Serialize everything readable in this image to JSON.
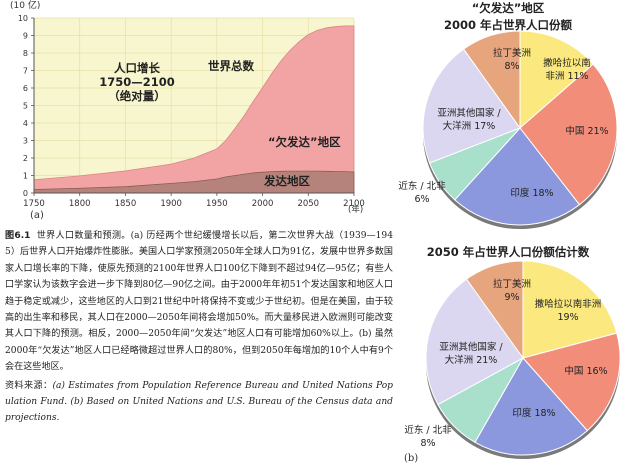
{
  "chart_data": [
    {
      "type": "area",
      "panel": "(a)",
      "ylabel": "(10 亿)",
      "xlabel": "(年)",
      "x_ticks": [
        1750,
        1800,
        1850,
        1900,
        1950,
        2000,
        2050,
        2100
      ],
      "y_ticks": [
        0,
        1,
        2,
        3,
        4,
        5,
        6,
        7,
        8,
        9,
        10
      ],
      "xlim": [
        1750,
        2100
      ],
      "ylim": [
        0,
        10
      ],
      "x": [
        1750,
        1800,
        1850,
        1900,
        1925,
        1950,
        1960,
        1970,
        1980,
        1990,
        2000,
        2010,
        2020,
        2030,
        2040,
        2050,
        2060,
        2070,
        2080,
        2090,
        2100
      ],
      "series": [
        {
          "name": "发达地区",
          "color": "#b5837b",
          "values": [
            0.2,
            0.27,
            0.36,
            0.55,
            0.65,
            0.8,
            0.92,
            1.0,
            1.08,
            1.15,
            1.19,
            1.22,
            1.24,
            1.25,
            1.25,
            1.25,
            1.25,
            1.24,
            1.23,
            1.22,
            1.2
          ]
        },
        {
          "name": "“欠发达”地区",
          "color": "#f2a4a4",
          "values": [
            0.56,
            0.71,
            0.9,
            1.1,
            1.35,
            1.72,
            2.1,
            2.7,
            3.35,
            4.1,
            4.83,
            5.6,
            6.3,
            6.9,
            7.4,
            7.8,
            8.05,
            8.2,
            8.28,
            8.33,
            8.35
          ]
        }
      ],
      "annotations": {
        "growth_title": "人口增长",
        "growth_range": "1750—2100",
        "growth_note": "（绝对量）",
        "world_total": "世界总数",
        "less_developed": "“欠发达”地区",
        "developed": "发达地区"
      }
    },
    {
      "type": "pie",
      "subtitle": "“欠发达”地区",
      "title": "2000 年占世界人口份额",
      "slices": [
        {
          "label": "撒哈拉以南非洲",
          "value": 11,
          "color": "#fbe97f"
        },
        {
          "label": "中国",
          "value": 21,
          "color": "#f28d7a"
        },
        {
          "label": "印度",
          "value": 18,
          "color": "#8c98dd"
        },
        {
          "label": "近东 / 北非",
          "value": 6,
          "color": "#a9e0cc"
        },
        {
          "label": "亚洲其他国家 / 大洋洲",
          "value": 17,
          "color": "#dcd7f0"
        },
        {
          "label": "拉丁美洲",
          "value": 8,
          "color": "#e7a57e"
        }
      ]
    },
    {
      "type": "pie",
      "title": "2050 年占世界人口份额估计数",
      "slices": [
        {
          "label": "撒哈拉以南非洲",
          "value": 19,
          "color": "#fbe97f"
        },
        {
          "label": "中国",
          "value": 16,
          "color": "#f28d7a"
        },
        {
          "label": "印度",
          "value": 18,
          "color": "#8c98dd"
        },
        {
          "label": "近东 / 北非",
          "value": 8,
          "color": "#a9e0cc"
        },
        {
          "label": "亚洲其他国家 / 大洋洲",
          "value": 21,
          "color": "#dcd7f0"
        },
        {
          "label": "拉丁美洲",
          "value": 9,
          "color": "#e7a57e"
        }
      ]
    }
  ],
  "pie_labels_2000": [
    {
      "lines": [
        "撒哈拉以南",
        "非洲  11%"
      ]
    },
    {
      "lines": [
        "中国 21%"
      ]
    },
    {
      "lines": [
        "印度 18%"
      ]
    },
    {
      "lines": [
        "近东 / 北非",
        "6%"
      ]
    },
    {
      "lines": [
        "亚洲其他国家 /",
        "大洋洲 17%"
      ]
    },
    {
      "lines": [
        "拉丁美洲",
        "8%"
      ]
    }
  ],
  "pie_labels_2050": [
    {
      "lines": [
        "撒哈拉以南非洲",
        "19%"
      ]
    },
    {
      "lines": [
        "中国 16%"
      ]
    },
    {
      "lines": [
        "印度 18%"
      ]
    },
    {
      "lines": [
        "近东 / 北非",
        "8%"
      ]
    },
    {
      "lines": [
        "亚洲其他国家 /",
        "大洋洲 21%"
      ]
    },
    {
      "lines": [
        "拉丁美洲",
        "9%"
      ]
    }
  ],
  "caption": {
    "fig_no": "图6.1",
    "body": "世界人口数量和预测。(a) 历经两个世纪缓慢增长以后，第二次世界大战（1939—1945）后世界人口开始爆炸性膨胀。美国人口学家预测2050年全球人口为91亿，发展中世界多数国家人口增长率的下降，使原先预测的2100年世界人口100亿下降到不超过94亿—95亿；有些人口学家认为该数字会进一步下降到80亿—90亿之间。由于2000年年初51个发达国家和地区人口趋于稳定或减少，这些地区的人口到21世纪中叶将保持不变或少于世纪初。但是在美国，由于较高的出生率和移民，其人口在2000—2050年间将会增加50%。而大量移民进入欧洲则可能改变其人口下降的预测。相反，2000—2050年间“欠发达”地区人口有可能增加60%以上。(b) 虽然2000年“欠发达”地区人口已经略微超过世界人口的80%，但到2050年每增加的10个人中有9个会在这些地区。",
    "source_label": "资料来源：",
    "source_body": "(a) Estimates from Population Reference Bureau and United Nations Population Fund. (b) Based on United Nations and U.S. Bureau of the Census data and projections."
  },
  "panel_b": "(b)"
}
